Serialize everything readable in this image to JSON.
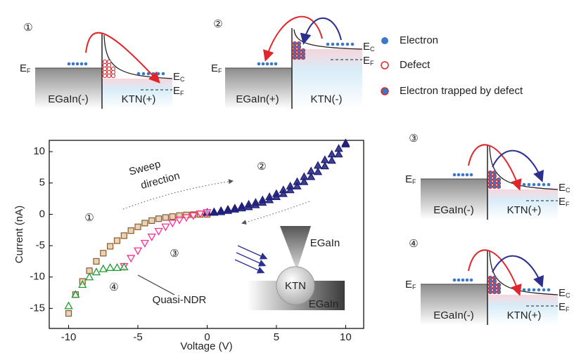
{
  "chart_data": {
    "type": "scatter",
    "x_label": "Voltage (V)",
    "y_label": "Current (nA)",
    "xlim": [
      -11.4,
      11.3
    ],
    "ylim": [
      -18.2,
      11.8
    ],
    "xticks": [
      -10,
      -5,
      0,
      5,
      10
    ],
    "yticks": [
      10,
      5,
      0,
      -5,
      -10,
      -15
    ],
    "series": [
      {
        "color": "#8b5a2b",
        "marker": "square",
        "x": [
          0,
          -0.5,
          -1,
          -1.5,
          -2,
          -2.5,
          -3,
          -3.5,
          -4,
          -4.5,
          -5,
          -5.5,
          -6,
          -6.5,
          -7,
          -7.5,
          -8,
          -8.5,
          -9,
          -9.5,
          -10
        ],
        "values": [
          0,
          0,
          -0.05,
          -0.1,
          -0.2,
          -0.35,
          -0.5,
          -0.7,
          -1.0,
          -1.4,
          -2.0,
          -2.6,
          -3.4,
          -4.2,
          -5.1,
          -6.2,
          -7.5,
          -9.0,
          -10.7,
          -12.8,
          -15.8
        ]
      },
      {
        "color": "#1f1f7a",
        "marker": "triangle",
        "x": [
          0,
          0.5,
          1,
          1.5,
          2,
          2.5,
          3,
          3.5,
          4,
          4.5,
          5,
          5.5,
          6,
          6.5,
          7,
          7.5,
          8,
          8.5,
          9,
          9.5,
          10
        ],
        "values": [
          0.3,
          0.4,
          0.6,
          0.8,
          1.0,
          1.3,
          1.6,
          1.9,
          2.3,
          2.8,
          3.3,
          3.9,
          4.5,
          5.2,
          6.0,
          6.9,
          7.8,
          8.7,
          9.6,
          10.5,
          11.4
        ]
      },
      {
        "color": "#1f1f7a",
        "marker": "triangle",
        "x": [
          0,
          0.5,
          1,
          1.5,
          2,
          2.5,
          3,
          3.5,
          4,
          4.5,
          5,
          5.5,
          6,
          6.5,
          7,
          7.5,
          8,
          8.5,
          9,
          9.5,
          10
        ],
        "values": [
          0.3,
          0.3,
          0.4,
          0.6,
          0.8,
          1.0,
          1.2,
          1.5,
          1.9,
          2.3,
          2.8,
          3.3,
          3.9,
          4.5,
          5.2,
          6.0,
          6.8,
          7.7,
          8.6,
          9.6,
          11.2
        ]
      },
      {
        "color": "#ff2d8f",
        "marker": "triangle-down",
        "x": [
          0,
          -0.5,
          -1,
          -1.5,
          -2,
          -2.5,
          -3,
          -3.5,
          -4,
          -4.5,
          -5,
          -5.5,
          -6
        ],
        "values": [
          0.3,
          0.1,
          -0.2,
          -0.5,
          -0.9,
          -1.4,
          -2.0,
          -2.7,
          -3.6,
          -4.6,
          -5.8,
          -7.0,
          -8.3
        ]
      },
      {
        "color": "#1a9a2e",
        "marker": "triangle",
        "x": [
          -6,
          -6.5,
          -7,
          -7.5,
          -8,
          -8.5,
          -9,
          -9.5,
          -10
        ],
        "values": [
          -8.4,
          -8.5,
          -8.5,
          -8.7,
          -9.2,
          -10.0,
          -11.2,
          -12.8,
          -14.6
        ]
      }
    ],
    "annotations": [
      {
        "text": "①",
        "color": "#a0522d"
      },
      {
        "text": "②",
        "color": "#1f1f7a"
      },
      {
        "text": "③",
        "color": "#e8204f"
      },
      {
        "text": "④",
        "color": "#1a9a2e"
      },
      {
        "text": "Sweep"
      },
      {
        "text": "direction"
      },
      {
        "text": "Quasi-NDR"
      },
      {
        "text": "EGaIn"
      },
      {
        "text": "KTN"
      },
      {
        "text": "EGaIn"
      }
    ]
  },
  "diagrams": [
    {
      "number": "①",
      "left": "EGaIn(-)",
      "right": "KTN(+)",
      "ef_left": {
        "main": "E",
        "sub": "F"
      },
      "ec": {
        "main": "E",
        "sub": "C"
      },
      "ef_right": {
        "main": "E",
        "sub": "F"
      }
    },
    {
      "number": "②",
      "left": "EGaIn(+)",
      "right": "KTN(-)",
      "ef_left": {
        "main": "E",
        "sub": "F"
      },
      "ec": {
        "main": "E",
        "sub": "C"
      },
      "ef_right": {
        "main": "E",
        "sub": "F"
      }
    },
    {
      "number": "③",
      "left": "EGaIn(-)",
      "right": "KTN(+)",
      "ef_left": {
        "main": "E",
        "sub": "F"
      },
      "ec": {
        "main": "E",
        "sub": "C"
      },
      "ef_right": {
        "main": "E",
        "sub": "F"
      }
    },
    {
      "number": "④",
      "left": "EGaIn(-)",
      "right": "KTN(+)",
      "ef_left": {
        "main": "E",
        "sub": "F"
      },
      "ec": {
        "main": "E",
        "sub": "C"
      },
      "ef_right": {
        "main": "E",
        "sub": "F"
      }
    }
  ],
  "legend": [
    "Electron",
    "Defect",
    "Electron trapped by defect"
  ]
}
